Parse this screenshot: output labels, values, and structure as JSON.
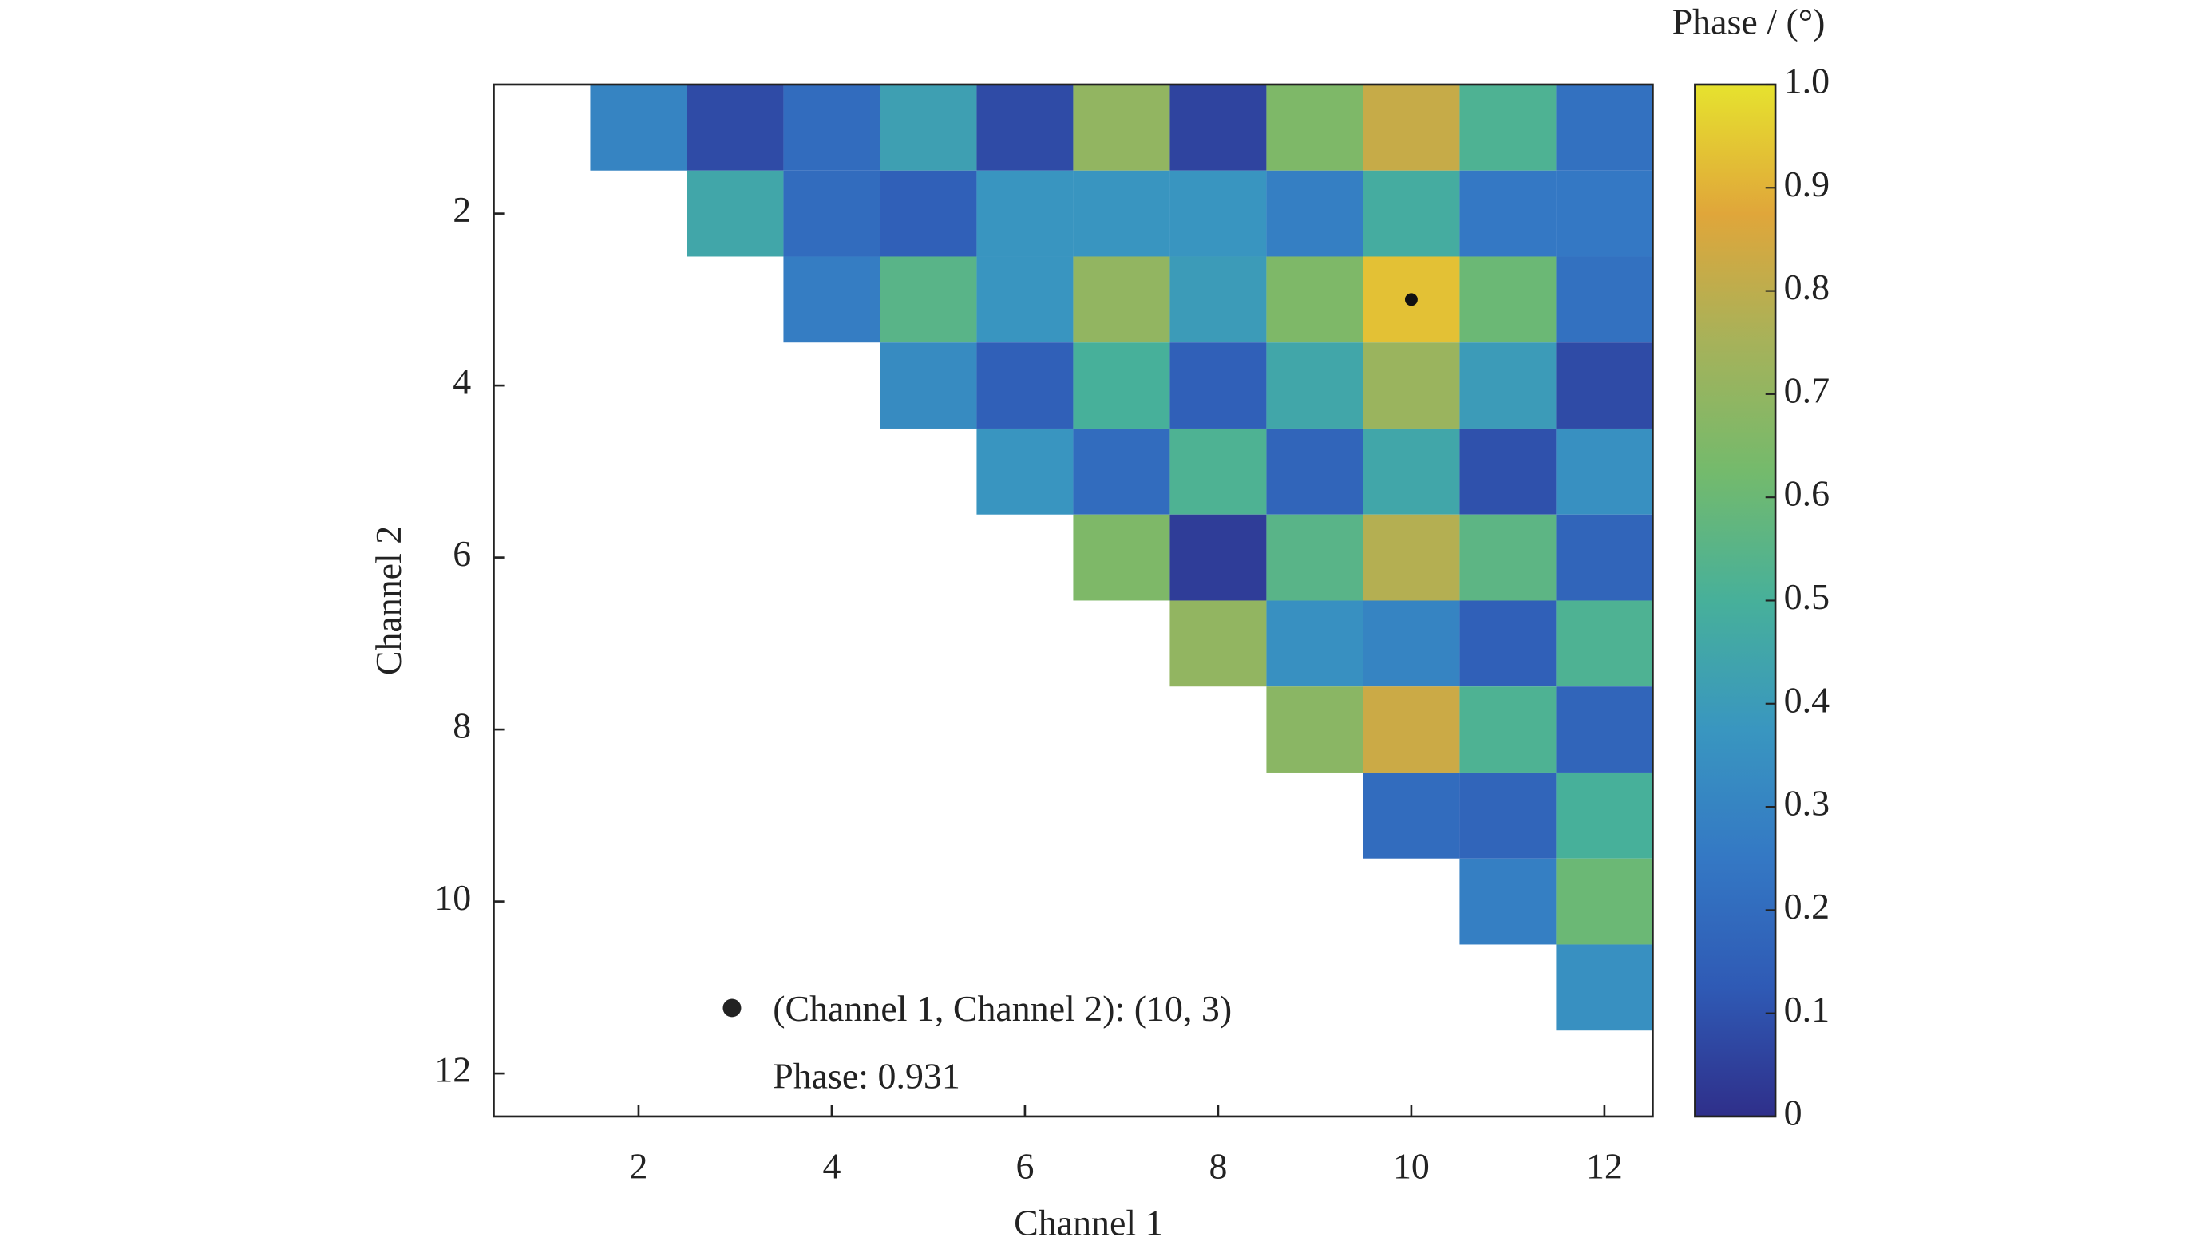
{
  "chart_data": {
    "type": "heatmap",
    "x_label": "Channel 1",
    "y_label": "Channel 2",
    "colorbar_label": "Phase / (°)",
    "x": [
      1,
      2,
      3,
      4,
      5,
      6,
      7,
      8,
      9,
      10,
      11,
      12
    ],
    "y": [
      1,
      2,
      3,
      4,
      5,
      6,
      7,
      8,
      9,
      10,
      11,
      12
    ],
    "z": [
      [
        null,
        0.3,
        0.08,
        0.2,
        0.42,
        0.08,
        0.7,
        0.06,
        0.65,
        0.82,
        0.52,
        0.22
      ],
      [
        null,
        null,
        0.45,
        0.2,
        0.15,
        0.37,
        0.37,
        0.37,
        0.28,
        0.48,
        0.25,
        0.25
      ],
      [
        null,
        null,
        null,
        0.27,
        0.55,
        0.37,
        0.7,
        0.4,
        0.65,
        0.931,
        0.6,
        0.22
      ],
      [
        null,
        null,
        null,
        null,
        0.33,
        0.15,
        0.5,
        0.15,
        0.45,
        0.72,
        0.4,
        0.08
      ],
      [
        null,
        null,
        null,
        null,
        null,
        0.37,
        0.2,
        0.52,
        0.17,
        0.45,
        0.1,
        0.35
      ],
      [
        null,
        null,
        null,
        null,
        null,
        null,
        0.65,
        0.04,
        0.55,
        0.78,
        0.56,
        0.17
      ],
      [
        null,
        null,
        null,
        null,
        null,
        null,
        null,
        0.7,
        0.35,
        0.3,
        0.15,
        0.52
      ],
      [
        null,
        null,
        null,
        null,
        null,
        null,
        null,
        null,
        0.68,
        0.83,
        0.52,
        0.17
      ],
      [
        null,
        null,
        null,
        null,
        null,
        null,
        null,
        null,
        null,
        0.2,
        0.17,
        0.5
      ],
      [
        null,
        null,
        null,
        null,
        null,
        null,
        null,
        null,
        null,
        null,
        0.28,
        0.6
      ],
      [
        null,
        null,
        null,
        null,
        null,
        null,
        null,
        null,
        null,
        null,
        null,
        0.35
      ],
      [
        null,
        null,
        null,
        null,
        null,
        null,
        null,
        null,
        null,
        null,
        null,
        null
      ]
    ],
    "xlim": [
      0.5,
      12.5
    ],
    "ylim": [
      0.5,
      12.5
    ],
    "y_reversed": true,
    "xticks": [
      2,
      4,
      6,
      8,
      10,
      12
    ],
    "yticks": [
      2,
      4,
      6,
      8,
      10,
      12
    ],
    "clim": [
      0,
      1
    ],
    "cticks": [
      0,
      0.1,
      0.2,
      0.3,
      0.4,
      0.5,
      0.6,
      0.7,
      0.8,
      0.9,
      {
        "value": 1,
        "label": "1.0"
      }
    ],
    "colormap": [
      "#2f2f8a",
      "#2f5ab5",
      "#3478c4",
      "#3996c0",
      "#47b09a",
      "#74ba6c",
      "#a6b25a",
      "#e0a63a",
      "#e6e22e"
    ],
    "datatip": {
      "col": 10,
      "row": 3,
      "lines": [
        "(Channel 1, Channel 2): (10, 3)",
        "Phase: 0.931"
      ]
    }
  }
}
